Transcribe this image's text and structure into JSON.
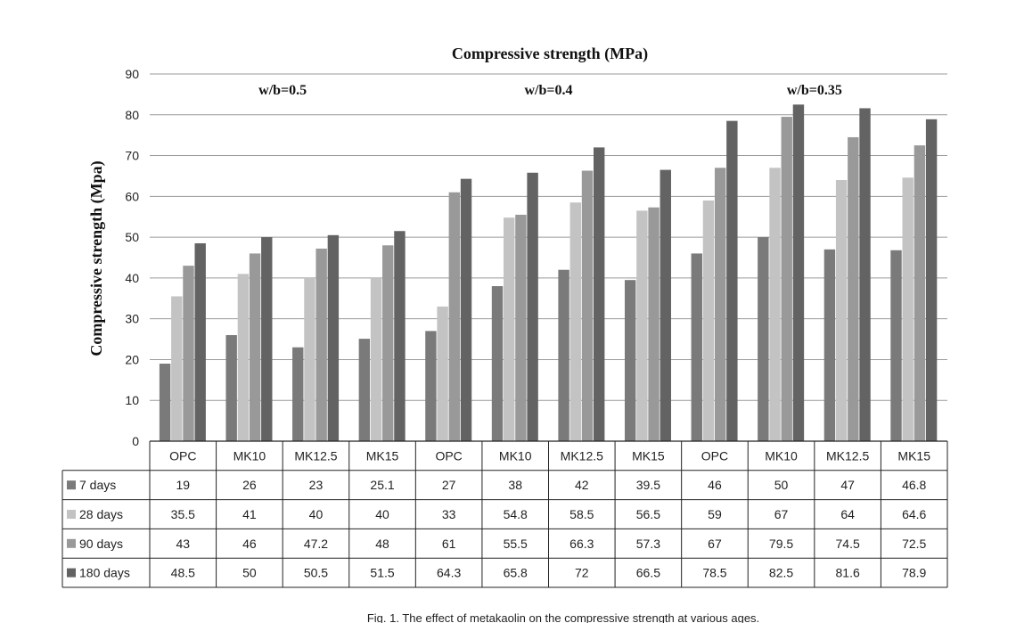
{
  "chart_data": {
    "type": "bar",
    "title": "Compressive strength (MPa)",
    "ylabel": "Compressive strength (Mpa)",
    "xlabel": "",
    "ylim": [
      0,
      90
    ],
    "yticks": [
      0,
      10,
      20,
      30,
      40,
      50,
      60,
      70,
      80,
      90
    ],
    "grid": true,
    "legend": "data-table-rows",
    "categories": [
      "OPC",
      "MK10",
      "MK12.5",
      "MK15",
      "OPC",
      "MK10",
      "MK12.5",
      "MK15",
      "OPC",
      "MK10",
      "MK12.5",
      "MK15"
    ],
    "groups": [
      {
        "label": "w/b=0.5",
        "from": 0,
        "to": 3
      },
      {
        "label": "w/b=0.4",
        "from": 4,
        "to": 7
      },
      {
        "label": "w/b=0.35",
        "from": 8,
        "to": 11
      }
    ],
    "series": [
      {
        "name": "7 days",
        "color": "#7a7a7a",
        "values": [
          19,
          26,
          23,
          25.1,
          27,
          38,
          42,
          39.5,
          46,
          50,
          47,
          46.8
        ],
        "labels": [
          "19",
          "26",
          "23",
          "25.1",
          "27",
          "38",
          "42",
          "39.5",
          "46",
          "50",
          "47",
          "46.8"
        ]
      },
      {
        "name": "28 days",
        "color": "#c3c3c3",
        "values": [
          35.5,
          41,
          40,
          40,
          33,
          54.8,
          58.5,
          56.5,
          59,
          67,
          64,
          64.6
        ],
        "labels": [
          "35.5",
          "41",
          "40",
          "40",
          "33",
          "54.8",
          "58.5",
          "56.5",
          "59",
          "67",
          "64",
          "64.6"
        ]
      },
      {
        "name": "90 days",
        "color": "#999999",
        "values": [
          43,
          46,
          47.2,
          48,
          61,
          55.5,
          66.3,
          57.3,
          67,
          79.5,
          74.5,
          72.5
        ],
        "labels": [
          "43",
          "46",
          "47.2",
          "48",
          "61",
          "55.5",
          "66.3",
          "57.3",
          "67",
          "79.5",
          "74.5",
          "72.5"
        ]
      },
      {
        "name": "180 days",
        "color": "#636363",
        "values": [
          48.5,
          50,
          50.5,
          51.5,
          64.3,
          65.8,
          72,
          66.5,
          78.5,
          82.5,
          81.6,
          78.9
        ],
        "labels": [
          "48.5",
          "50",
          "50.5",
          "51.5",
          "64.3",
          "65.8",
          "72",
          "66.5",
          "78.5",
          "82.5",
          "81.6",
          "78.9"
        ]
      }
    ]
  },
  "caption": "Fig. 1. The effect of metakaolin on the compressive strength at various ages."
}
